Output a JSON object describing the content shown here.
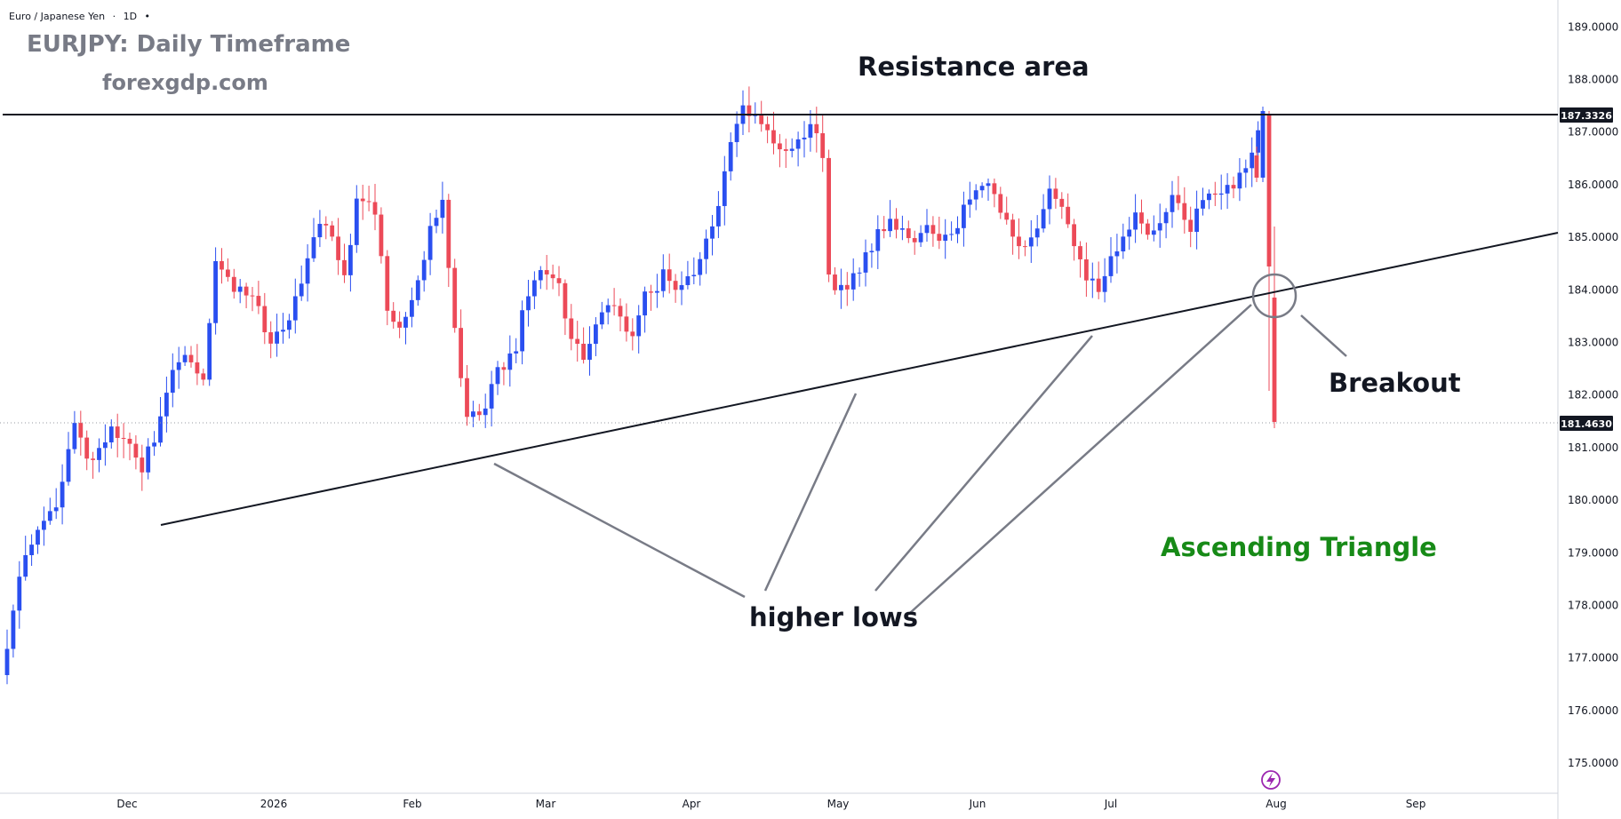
{
  "header": {
    "symbol": "Euro / Japanese Yen",
    "sep": "·",
    "interval": "1D",
    "dot": "•"
  },
  "annotations": {
    "title": "EURJPY: Daily Timeframe",
    "site": "forexgdp.com",
    "resistance": "Resistance area",
    "breakout": "Breakout",
    "higher_lows": "higher lows",
    "pattern": "Ascending Triangle"
  },
  "colors": {
    "up": "#2a4ff0",
    "down": "#ec4a58",
    "title_gray": "#787b86",
    "pattern_green": "#178a17",
    "line": "#131722",
    "pointer": "#787b86"
  },
  "icons": {
    "bottom": "lightning-icon"
  },
  "chart_data": {
    "type": "candlestick",
    "ylim": [
      174.4,
      189.4
    ],
    "y_ticks": [
      "175.0000",
      "176.0000",
      "177.0000",
      "178.0000",
      "179.0000",
      "180.0000",
      "181.0000",
      "182.0000",
      "183.0000",
      "184.0000",
      "185.0000",
      "186.0000",
      "187.0000",
      "188.0000",
      "189.0000"
    ],
    "x_labels": [
      "Dec",
      "2026",
      "Feb",
      "Mar",
      "Apr",
      "May",
      "Jun",
      "Jul",
      "Aug",
      "Sep"
    ],
    "price_labels": {
      "resistance": "187.3326",
      "last": "181.4630"
    },
    "resistance_level": 187.3326,
    "last_price": 181.463,
    "seed": 20260731
  }
}
